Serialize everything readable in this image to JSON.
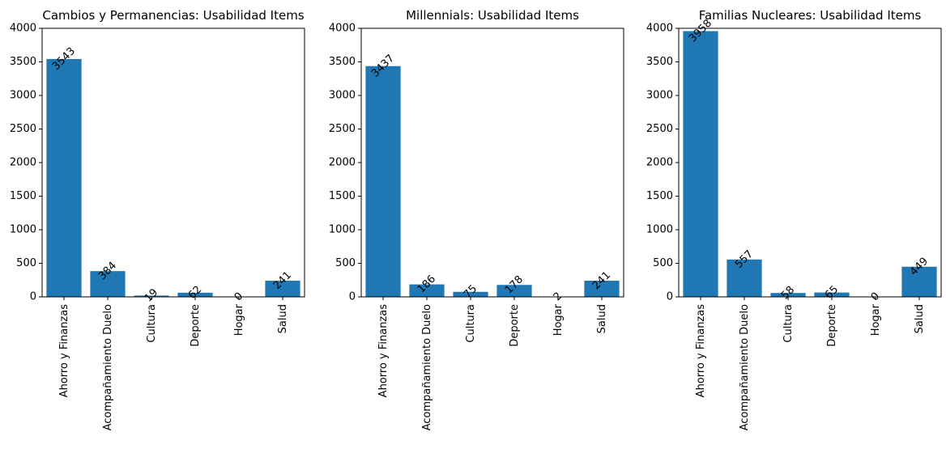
{
  "chart_data": [
    {
      "type": "bar",
      "title": "Cambios y Permanencias: Usabilidad Items",
      "categories": [
        "Ahorro y Finanzas",
        "Acompañamiento Duelo",
        "Cultura",
        "Deporte",
        "Hogar",
        "Salud"
      ],
      "values": [
        3543,
        384,
        19,
        62,
        0,
        241
      ],
      "ylim": [
        0,
        4000
      ],
      "yticks": [
        0,
        500,
        1000,
        1500,
        2000,
        2500,
        3000,
        3500,
        4000
      ],
      "bar_color": "#1f77b4"
    },
    {
      "type": "bar",
      "title": "Millennials: Usabilidad Items",
      "categories": [
        "Ahorro y Finanzas",
        "Acompañamiento Duelo",
        "Cultura",
        "Deporte",
        "Hogar",
        "Salud"
      ],
      "values": [
        3437,
        186,
        75,
        178,
        2,
        241
      ],
      "ylim": [
        0,
        4000
      ],
      "yticks": [
        0,
        500,
        1000,
        1500,
        2000,
        2500,
        3000,
        3500,
        4000
      ],
      "bar_color": "#1f77b4"
    },
    {
      "type": "bar",
      "title": "Familias Nucleares: Usabilidad Items",
      "categories": [
        "Ahorro y Finanzas",
        "Acompañamiento Duelo",
        "Cultura",
        "Deporte",
        "Hogar",
        "Salud"
      ],
      "values": [
        3958,
        557,
        58,
        65,
        0,
        449
      ],
      "ylim": [
        0,
        4000
      ],
      "yticks": [
        0,
        500,
        1000,
        1500,
        2000,
        2500,
        3000,
        3500,
        4000
      ],
      "bar_color": "#1f77b4"
    }
  ]
}
